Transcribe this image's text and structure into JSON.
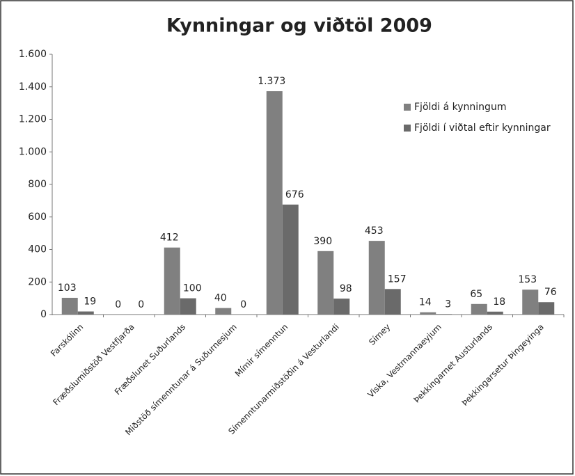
{
  "chart_data": {
    "type": "bar",
    "title": "Kynningar og viðtöl 2009",
    "categories": [
      "Farskólinn",
      "Fræðslumiðstöð Vestfjarða",
      "Fræðslunet Suðurlands",
      "Miðstöð símenntunar á Suðurnesjum",
      "Mímir símenntun",
      "Símenntunarmiðstöðin á Vesturlandi",
      "Símey",
      "Viska, Vestmannaeyjum",
      "Þekkingarnet Austurlands",
      "Þekkingarsetur Þingeyinga"
    ],
    "series": [
      {
        "name": "Fjöldi á kynningum",
        "color": "#808080",
        "values": [
          103,
          0,
          412,
          40,
          1373,
          390,
          453,
          14,
          65,
          153
        ],
        "value_labels": [
          "103",
          "0",
          "412",
          "40",
          "1.373",
          "390",
          "453",
          "14",
          "65",
          "153"
        ]
      },
      {
        "name": "Fjöldi í viðtal eftir kynningar",
        "color": "#6a6a6a",
        "values": [
          19,
          0,
          100,
          0,
          676,
          98,
          157,
          3,
          18,
          76
        ]
      }
    ],
    "ylim": [
      0,
      1600
    ],
    "yticks": [
      0,
      200,
      400,
      600,
      800,
      {
        "value": 1000,
        "label": "1.000"
      },
      {
        "value": 1200,
        "label": "1.200"
      },
      {
        "value": 1400,
        "label": "1.400"
      },
      {
        "value": 1600,
        "label": "1.600"
      }
    ],
    "grid": false,
    "legend": "right"
  }
}
